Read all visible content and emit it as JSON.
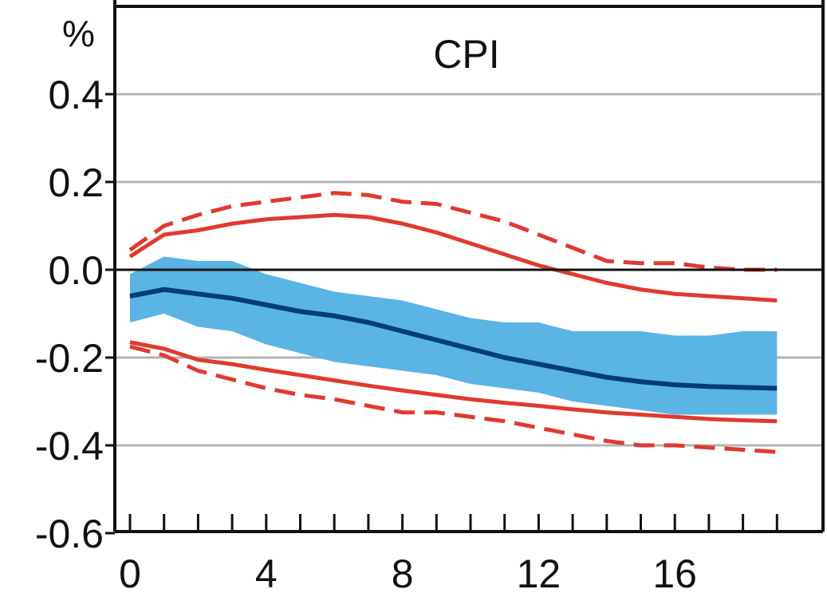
{
  "chart_data": {
    "type": "line",
    "title": "CPI",
    "y_unit": "%",
    "xlabel": "",
    "ylabel": "",
    "xlim": [
      0,
      19
    ],
    "ylim": [
      -0.6,
      0.6
    ],
    "x_ticks": [
      0,
      4,
      8,
      12,
      16
    ],
    "x_minor_ticks": [
      0,
      1,
      2,
      3,
      4,
      5,
      6,
      7,
      8,
      9,
      10,
      11,
      12,
      13,
      14,
      15,
      16,
      17,
      18,
      19
    ],
    "y_ticks": [
      0.4,
      0.2,
      0.0,
      -0.2,
      -0.4,
      -0.6
    ],
    "y_tick_labels": [
      "0.4",
      "0.2",
      "0.0",
      "-0.2",
      "-0.4",
      "-0.6"
    ],
    "grid": true,
    "zero_line": true,
    "x": [
      0,
      1,
      2,
      3,
      4,
      5,
      6,
      7,
      8,
      9,
      10,
      11,
      12,
      13,
      14,
      15,
      16,
      17,
      18,
      19
    ],
    "series": [
      {
        "role": "band",
        "color": "#5ab4e4",
        "lower": [
          -0.12,
          -0.1,
          -0.13,
          -0.14,
          -0.17,
          -0.19,
          -0.21,
          -0.22,
          -0.23,
          -0.24,
          -0.26,
          -0.27,
          -0.28,
          -0.3,
          -0.31,
          -0.32,
          -0.33,
          -0.33,
          -0.33,
          -0.33
        ],
        "upper": [
          -0.01,
          0.03,
          0.02,
          0.02,
          -0.01,
          -0.03,
          -0.05,
          -0.06,
          -0.07,
          -0.09,
          -0.11,
          -0.12,
          -0.12,
          -0.14,
          -0.14,
          -0.14,
          -0.15,
          -0.15,
          -0.14,
          -0.14
        ]
      },
      {
        "role": "line",
        "color": "#003d7a",
        "values": [
          -0.06,
          -0.045,
          -0.055,
          -0.065,
          -0.08,
          -0.095,
          -0.105,
          -0.12,
          -0.14,
          -0.16,
          -0.18,
          -0.2,
          -0.215,
          -0.23,
          -0.245,
          -0.255,
          -0.262,
          -0.266,
          -0.268,
          -0.27
        ]
      },
      {
        "role": "line",
        "color": "#e03a2e",
        "values": [
          0.03,
          0.08,
          0.09,
          0.105,
          0.115,
          0.12,
          0.125,
          0.12,
          0.105,
          0.085,
          0.06,
          0.035,
          0.01,
          -0.01,
          -0.03,
          -0.045,
          -0.055,
          -0.06,
          -0.065,
          -0.07
        ]
      },
      {
        "role": "line",
        "color": "#e03a2e",
        "values": [
          -0.165,
          -0.18,
          -0.205,
          -0.215,
          -0.228,
          -0.24,
          -0.252,
          -0.264,
          -0.275,
          -0.285,
          -0.295,
          -0.303,
          -0.31,
          -0.318,
          -0.325,
          -0.33,
          -0.335,
          -0.34,
          -0.343,
          -0.345
        ]
      },
      {
        "role": "line",
        "color": "#e03a2e",
        "dashed": true,
        "values": [
          0.045,
          0.1,
          0.125,
          0.145,
          0.155,
          0.165,
          0.175,
          0.17,
          0.155,
          0.15,
          0.13,
          0.11,
          0.08,
          0.05,
          0.02,
          0.015,
          0.015,
          0.005,
          0.0,
          0.0
        ]
      },
      {
        "role": "line",
        "color": "#e03a2e",
        "dashed": true,
        "values": [
          -0.175,
          -0.195,
          -0.23,
          -0.25,
          -0.27,
          -0.285,
          -0.295,
          -0.31,
          -0.325,
          -0.325,
          -0.335,
          -0.345,
          -0.36,
          -0.375,
          -0.39,
          -0.4,
          -0.4,
          -0.405,
          -0.41,
          -0.415
        ]
      }
    ]
  },
  "colors": {
    "axis": "#111111",
    "grid": "#b4b4b4"
  }
}
